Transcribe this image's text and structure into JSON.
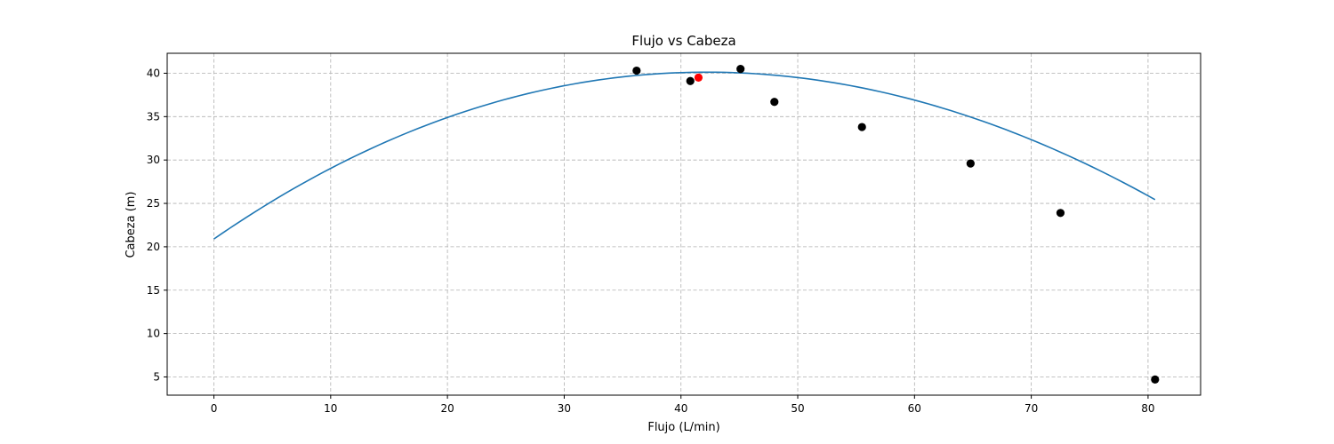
{
  "chart_data": {
    "type": "scatter",
    "title": "Flujo vs Cabeza",
    "xlabel": "Flujo (L/min)",
    "ylabel": "Cabeza (m)",
    "xlim": [
      -4,
      84.5
    ],
    "ylim": [
      2.9,
      42.3
    ],
    "xticks": [
      0,
      10,
      20,
      30,
      40,
      50,
      60,
      70,
      80
    ],
    "yticks": [
      5,
      10,
      15,
      20,
      25,
      30,
      35,
      40
    ],
    "grid": true,
    "grid_style": "dashed",
    "series": [
      {
        "kind": "fitted-curve",
        "color": "#1f77b4",
        "x_range": [
          0,
          80.6
        ],
        "samples": 120,
        "polynomial": [
          20.9,
          0.929,
          -0.01165,
          1.02e-05
        ]
      },
      {
        "kind": "points",
        "color": "#000000",
        "points": [
          {
            "x": 36.2,
            "y": 40.3
          },
          {
            "x": 40.8,
            "y": 39.1
          },
          {
            "x": 45.1,
            "y": 40.5
          },
          {
            "x": 48.0,
            "y": 36.7
          },
          {
            "x": 55.5,
            "y": 33.8
          },
          {
            "x": 64.8,
            "y": 29.6
          },
          {
            "x": 72.5,
            "y": 23.9
          },
          {
            "x": 80.6,
            "y": 4.7
          }
        ]
      },
      {
        "kind": "highlight-point",
        "color": "#ff0000",
        "points": [
          {
            "x": 41.5,
            "y": 39.5
          }
        ]
      }
    ]
  }
}
